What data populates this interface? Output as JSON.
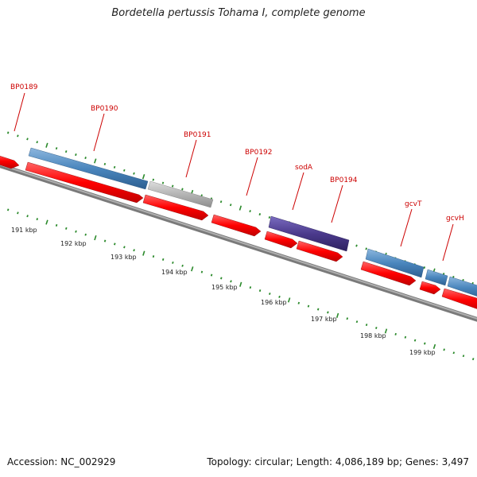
{
  "title": "Bordetella pertussis Tohama I, complete genome",
  "footer": {
    "accession": "Accession: NC_002929",
    "topology": "Topology: circular; Length: 4,086,189 bp; Genes: 3,497"
  },
  "genes": [
    {
      "label": "BP0189",
      "class": "forward"
    },
    {
      "label": "BP0190",
      "class": "blue"
    },
    {
      "label": "BP0191",
      "class": "grey"
    },
    {
      "label": "BP0192",
      "class": "forward"
    },
    {
      "label": "sodA",
      "class": "purple"
    },
    {
      "label": "BP0194",
      "class": "forward"
    },
    {
      "label": "gcvT",
      "class": "blue"
    },
    {
      "label": "gcvH",
      "class": "blue"
    }
  ],
  "scale_labels": [
    "191 kbp",
    "192 kbp",
    "193 kbp",
    "194 kbp",
    "195 kbp",
    "196 kbp",
    "197 kbp",
    "198 kbp",
    "199 kbp"
  ],
  "colors": {
    "forward_red": "#ff0000",
    "blue": "#4a86bd",
    "grey": "#b4b4b4",
    "purple": "#4b3a8c",
    "label_red": "#cc0000",
    "tick_green": "#2b8a2b",
    "backbone": "#777777"
  }
}
